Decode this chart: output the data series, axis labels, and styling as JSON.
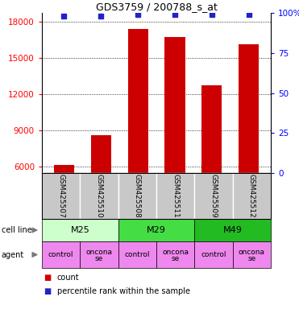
{
  "title": "GDS3759 / 200788_s_at",
  "samples": [
    "GSM425507",
    "GSM425510",
    "GSM425508",
    "GSM425511",
    "GSM425509",
    "GSM425512"
  ],
  "counts": [
    6150,
    8600,
    17350,
    16700,
    12700,
    16100
  ],
  "percentiles": [
    98,
    98,
    99,
    99,
    99,
    99
  ],
  "ylim_left": [
    5500,
    18700
  ],
  "ylim_right": [
    0,
    100
  ],
  "yticks_left": [
    6000,
    9000,
    12000,
    15000,
    18000
  ],
  "yticks_right": [
    0,
    25,
    50,
    75,
    100
  ],
  "bar_color": "#cc0000",
  "dot_color": "#2222cc",
  "cell_lines": [
    {
      "label": "M25",
      "cols": [
        0,
        1
      ],
      "color": "#ccffcc"
    },
    {
      "label": "M29",
      "cols": [
        2,
        3
      ],
      "color": "#44dd44"
    },
    {
      "label": "M49",
      "cols": [
        4,
        5
      ],
      "color": "#22bb22"
    }
  ],
  "agents": [
    "control",
    "onconase",
    "control",
    "onconase",
    "control",
    "onconase"
  ],
  "agent_color": "#ee88ee",
  "sample_bg_color": "#c8c8c8",
  "legend_count_color": "#cc0000",
  "legend_dot_color": "#2222cc",
  "fig_width": 3.71,
  "fig_height": 3.84,
  "dpi": 100
}
